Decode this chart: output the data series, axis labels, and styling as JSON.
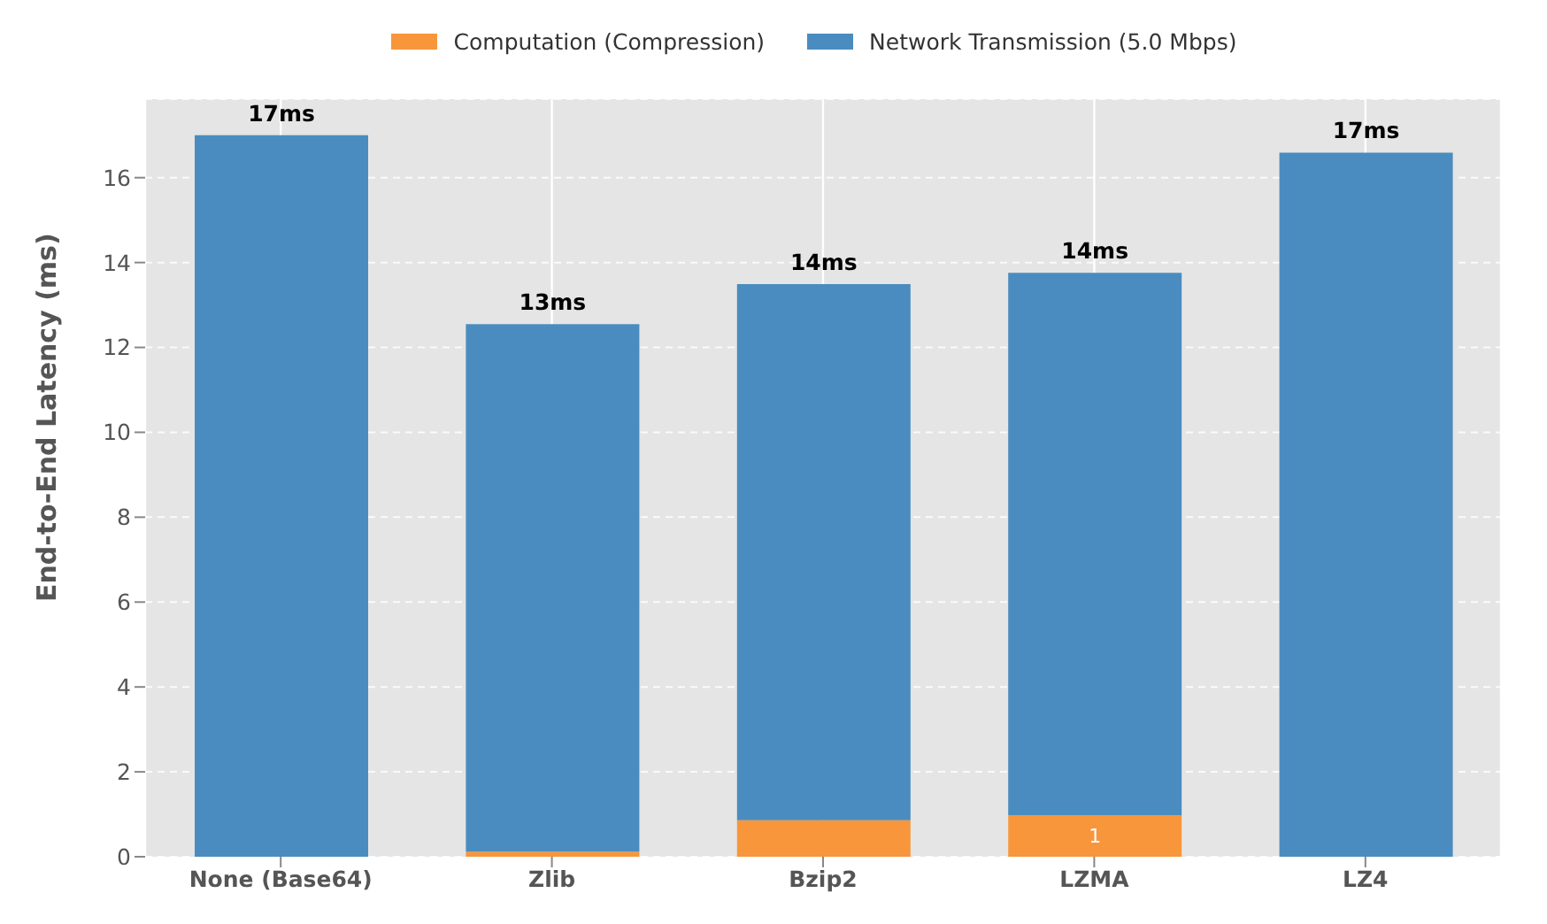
{
  "chart_data": {
    "type": "bar",
    "stacked": true,
    "ylabel": "End-to-End Latency (ms)",
    "categories": [
      "None (Base64)",
      "Zlib",
      "Bzip2",
      "LZMA",
      "LZ4"
    ],
    "series": [
      {
        "name": "Computation (Compression)",
        "color": "#f7963b",
        "values": [
          0,
          0.12,
          0.86,
          0.98,
          0
        ],
        "value_labels": [
          null,
          null,
          null,
          "1",
          null
        ]
      },
      {
        "name": "Network Transmission (5.0 Mbps)",
        "color": "#4a8cbf",
        "values": [
          17.0,
          12.43,
          12.63,
          12.78,
          16.59
        ]
      }
    ],
    "totals": [
      "17ms",
      "13ms",
      "14ms",
      "14ms",
      "17ms"
    ],
    "ylim": [
      0,
      17.85
    ],
    "yticks": [
      0,
      2,
      4,
      6,
      8,
      10,
      12,
      14,
      16
    ],
    "grid": true,
    "legend": "top"
  }
}
